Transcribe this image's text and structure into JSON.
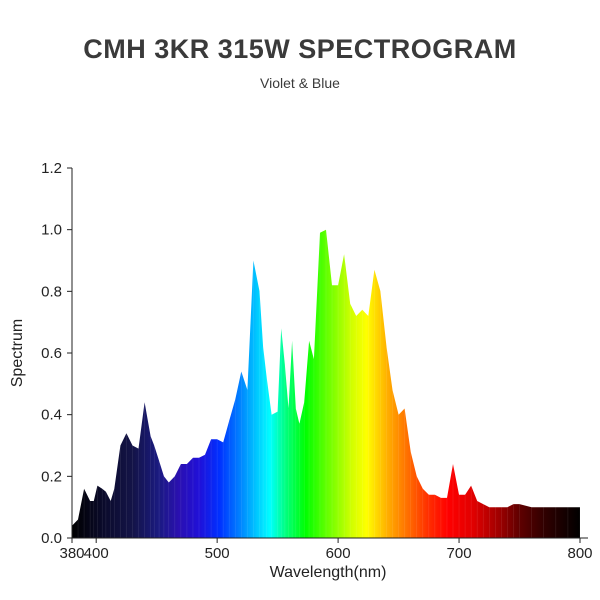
{
  "title": "CMH 3KR 315W SPECTROGRAM",
  "subtitle": "Violet & Blue",
  "chart_data": {
    "type": "area",
    "title": "CMH 3KR 315W SPECTROGRAM",
    "subtitle": "Violet & Blue",
    "xlabel": "Wavelength(nm)",
    "ylabel": "Spectrum",
    "xlim": [
      380,
      800
    ],
    "ylim": [
      0,
      1.2
    ],
    "x_ticks": [
      380,
      400,
      500,
      600,
      700,
      800
    ],
    "y_ticks": [
      0.0,
      0.2,
      0.4,
      0.6,
      0.8,
      1.0,
      1.2
    ],
    "x_tick_labels": [
      "380",
      "400",
      "500",
      "600",
      "700",
      "800"
    ],
    "y_tick_labels": [
      "0.0",
      "0.2",
      "0.4",
      "0.6",
      "0.8",
      "1.0",
      "1.2"
    ],
    "grid": false,
    "fill": "wavelength-spectrum-gradient",
    "series": [
      {
        "x": [
          380,
          385,
          390,
          395,
          398,
          401,
          405,
          408,
          412,
          415,
          420,
          425,
          430,
          435,
          440,
          445,
          448,
          452,
          456,
          460,
          465,
          470,
          475,
          480,
          485,
          490,
          495,
          500,
          505,
          510,
          515,
          520,
          525,
          530,
          535,
          538,
          541,
          545,
          550,
          553,
          556,
          559,
          562,
          565,
          568,
          572,
          576,
          580,
          585,
          590,
          595,
          600,
          605,
          610,
          615,
          620,
          625,
          630,
          635,
          640,
          645,
          650,
          655,
          660,
          665,
          670,
          675,
          680,
          685,
          690,
          695,
          700,
          705,
          710,
          715,
          720,
          725,
          730,
          735,
          740,
          745,
          750,
          760,
          770,
          780,
          790,
          800
        ],
        "y": [
          0.04,
          0.06,
          0.16,
          0.12,
          0.12,
          0.17,
          0.16,
          0.15,
          0.12,
          0.16,
          0.3,
          0.34,
          0.3,
          0.29,
          0.44,
          0.33,
          0.3,
          0.25,
          0.2,
          0.18,
          0.2,
          0.24,
          0.24,
          0.26,
          0.26,
          0.27,
          0.32,
          0.32,
          0.31,
          0.38,
          0.45,
          0.54,
          0.48,
          0.9,
          0.8,
          0.62,
          0.52,
          0.4,
          0.41,
          0.68,
          0.56,
          0.42,
          0.64,
          0.42,
          0.37,
          0.44,
          0.64,
          0.58,
          0.99,
          1.0,
          0.82,
          0.82,
          0.92,
          0.76,
          0.72,
          0.74,
          0.72,
          0.87,
          0.8,
          0.62,
          0.48,
          0.4,
          0.42,
          0.28,
          0.2,
          0.16,
          0.14,
          0.14,
          0.13,
          0.13,
          0.24,
          0.14,
          0.14,
          0.17,
          0.12,
          0.11,
          0.1,
          0.1,
          0.1,
          0.1,
          0.11,
          0.11,
          0.1,
          0.1,
          0.1,
          0.1,
          0.1
        ]
      }
    ]
  }
}
